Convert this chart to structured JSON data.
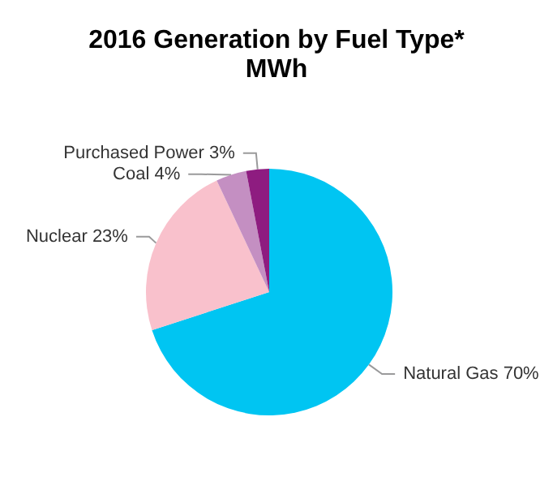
{
  "chart_data": {
    "type": "pie",
    "title": "2016 Generation by Fuel Type*",
    "subtitle": "MWh",
    "categories": [
      "Natural Gas",
      "Nuclear",
      "Coal",
      "Purchased Power"
    ],
    "values": [
      70,
      23,
      4,
      3
    ],
    "value_labels": [
      "70%",
      "23%",
      "4%",
      "3%"
    ],
    "colors": [
      "#00c5f2",
      "#f9c1cc",
      "#c48fc2",
      "#8e1c80"
    ],
    "legend": false
  }
}
